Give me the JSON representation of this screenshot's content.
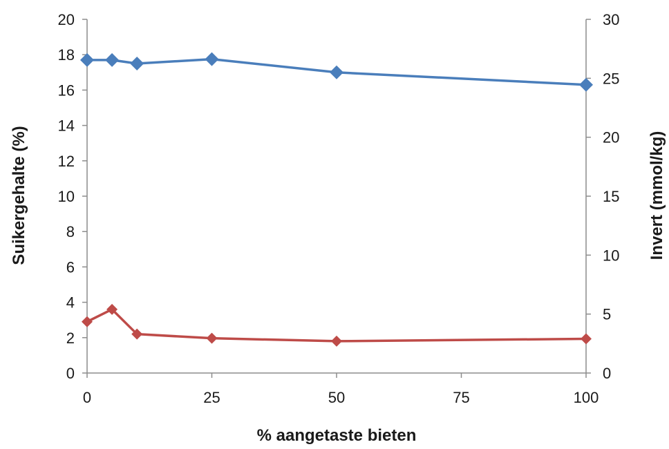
{
  "chart_data": {
    "type": "line",
    "x": [
      0,
      5,
      10,
      25,
      50,
      100
    ],
    "xlabel": "% aangetaste bieten",
    "ylabel": "Suikergehalte (%)",
    "y2label": "Invert (mmol/kg)",
    "xlim": [
      0,
      100
    ],
    "ylim": [
      0,
      20
    ],
    "y2lim": [
      0,
      30
    ],
    "xticks": [
      "0",
      "25",
      "50",
      "75",
      "100"
    ],
    "yticks": [
      "0",
      "2",
      "4",
      "6",
      "8",
      "10",
      "12",
      "14",
      "16",
      "18",
      "20"
    ],
    "y2ticks": [
      "0",
      "5",
      "10",
      "15",
      "20",
      "25",
      "30"
    ],
    "grid": false,
    "series": [
      {
        "axis": "left",
        "color": "#4a7ebb",
        "marker": "diamond",
        "values": [
          17.7,
          17.7,
          17.5,
          17.75,
          17.0,
          16.3
        ]
      },
      {
        "axis": "right",
        "color": "#be4b48",
        "marker": "diamond",
        "values": [
          4.35,
          5.4,
          3.3,
          2.95,
          2.7,
          2.9
        ]
      }
    ]
  }
}
